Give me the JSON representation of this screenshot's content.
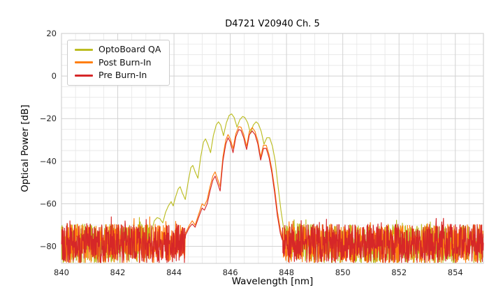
{
  "chart_data": {
    "type": "line",
    "title": "D4721 V20940 Ch. 5",
    "xlabel": "Wavelength [nm]",
    "ylabel": "Optical Power [dB]",
    "xlim": [
      840,
      855
    ],
    "ylim": [
      -88,
      20
    ],
    "xticks": [
      840,
      842,
      844,
      846,
      848,
      850,
      852,
      854
    ],
    "yticks": [
      20,
      0,
      -20,
      -40,
      -60,
      -80
    ],
    "x_minor_step": 0.5,
    "y_minor_step": 5,
    "grid": true,
    "legend_position": "upper left",
    "noise": {
      "top_db": -69.5,
      "depth_db": 18.5,
      "spike_chance": 0.05,
      "spike_db": 3.5,
      "sample_step_nm": 0.01
    },
    "colors": {
      "grid_major": "#d2d2d2",
      "grid_minor": "#e6e6e6",
      "axes_border": "#cbcbcb",
      "tick_label": "#262626"
    },
    "series": [
      {
        "name": "OptoBoard QA",
        "color": "#bcbd22",
        "envelope": [
          [
            843.2,
            -73
          ],
          [
            843.3,
            -68
          ],
          [
            843.4,
            -66.5
          ],
          [
            843.5,
            -67
          ],
          [
            843.6,
            -69
          ],
          [
            843.7,
            -64
          ],
          [
            843.8,
            -61
          ],
          [
            843.9,
            -59
          ],
          [
            843.97,
            -61
          ],
          [
            844.05,
            -57
          ],
          [
            844.15,
            -53
          ],
          [
            844.22,
            -52
          ],
          [
            844.3,
            -55
          ],
          [
            844.4,
            -58
          ],
          [
            844.5,
            -50
          ],
          [
            844.6,
            -43
          ],
          [
            844.67,
            -42
          ],
          [
            844.75,
            -45
          ],
          [
            844.85,
            -48
          ],
          [
            844.95,
            -38
          ],
          [
            845.05,
            -31
          ],
          [
            845.12,
            -29.5
          ],
          [
            845.2,
            -32
          ],
          [
            845.3,
            -36
          ],
          [
            845.4,
            -28
          ],
          [
            845.5,
            -23
          ],
          [
            845.58,
            -21.5
          ],
          [
            845.66,
            -23
          ],
          [
            845.76,
            -28
          ],
          [
            845.86,
            -22
          ],
          [
            845.96,
            -18.5
          ],
          [
            846.05,
            -17.8
          ],
          [
            846.14,
            -19.5
          ],
          [
            846.24,
            -24
          ],
          [
            846.34,
            -20.5
          ],
          [
            846.44,
            -19
          ],
          [
            846.52,
            -19.5
          ],
          [
            846.62,
            -22
          ],
          [
            846.72,
            -27
          ],
          [
            846.82,
            -23
          ],
          [
            846.92,
            -21.5
          ],
          [
            847.0,
            -22.5
          ],
          [
            847.1,
            -26
          ],
          [
            847.2,
            -32
          ],
          [
            847.3,
            -29
          ],
          [
            847.4,
            -29
          ],
          [
            847.5,
            -33
          ],
          [
            847.6,
            -40
          ],
          [
            847.7,
            -52
          ],
          [
            847.8,
            -63
          ],
          [
            847.88,
            -70
          ],
          [
            847.95,
            -75
          ]
        ]
      },
      {
        "name": "Post Burn-In",
        "color": "#ff7f0e",
        "envelope": [
          [
            844.4,
            -74
          ],
          [
            844.55,
            -70
          ],
          [
            844.65,
            -68
          ],
          [
            844.75,
            -70
          ],
          [
            844.9,
            -64
          ],
          [
            845.0,
            -60
          ],
          [
            845.08,
            -61
          ],
          [
            845.18,
            -58
          ],
          [
            845.28,
            -52
          ],
          [
            845.38,
            -47
          ],
          [
            845.46,
            -45
          ],
          [
            845.54,
            -48
          ],
          [
            845.64,
            -52
          ],
          [
            845.74,
            -38
          ],
          [
            845.84,
            -30
          ],
          [
            845.92,
            -27.5
          ],
          [
            846.0,
            -29.5
          ],
          [
            846.1,
            -34
          ],
          [
            846.2,
            -27
          ],
          [
            846.3,
            -23.8
          ],
          [
            846.38,
            -24
          ],
          [
            846.48,
            -27.5
          ],
          [
            846.58,
            -33
          ],
          [
            846.68,
            -26
          ],
          [
            846.78,
            -24.2
          ],
          [
            846.88,
            -26
          ],
          [
            846.98,
            -30.5
          ],
          [
            847.08,
            -38
          ],
          [
            847.18,
            -32.5
          ],
          [
            847.28,
            -32.5
          ],
          [
            847.38,
            -37
          ],
          [
            847.48,
            -44
          ],
          [
            847.58,
            -53
          ],
          [
            847.68,
            -64
          ],
          [
            847.78,
            -72
          ],
          [
            847.85,
            -76
          ]
        ]
      },
      {
        "name": "Pre Burn-In",
        "color": "#d62728",
        "envelope": [
          [
            844.4,
            -75
          ],
          [
            844.55,
            -71
          ],
          [
            844.65,
            -69.5
          ],
          [
            844.75,
            -71
          ],
          [
            844.9,
            -65.5
          ],
          [
            845.0,
            -62
          ],
          [
            845.08,
            -63
          ],
          [
            845.18,
            -60
          ],
          [
            845.28,
            -54
          ],
          [
            845.38,
            -49
          ],
          [
            845.46,
            -47
          ],
          [
            845.54,
            -50
          ],
          [
            845.64,
            -54
          ],
          [
            845.74,
            -40
          ],
          [
            845.84,
            -32
          ],
          [
            845.92,
            -29
          ],
          [
            846.0,
            -31
          ],
          [
            846.1,
            -36
          ],
          [
            846.2,
            -28.5
          ],
          [
            846.3,
            -25.2
          ],
          [
            846.38,
            -25.5
          ],
          [
            846.48,
            -29
          ],
          [
            846.58,
            -34.5
          ],
          [
            846.68,
            -27.5
          ],
          [
            846.78,
            -25.8
          ],
          [
            846.88,
            -27.5
          ],
          [
            846.98,
            -32
          ],
          [
            847.08,
            -39.5
          ],
          [
            847.18,
            -34
          ],
          [
            847.28,
            -34
          ],
          [
            847.38,
            -38.5
          ],
          [
            847.48,
            -45.5
          ],
          [
            847.58,
            -55
          ],
          [
            847.68,
            -66
          ],
          [
            847.78,
            -74
          ],
          [
            847.85,
            -77
          ]
        ]
      }
    ]
  }
}
